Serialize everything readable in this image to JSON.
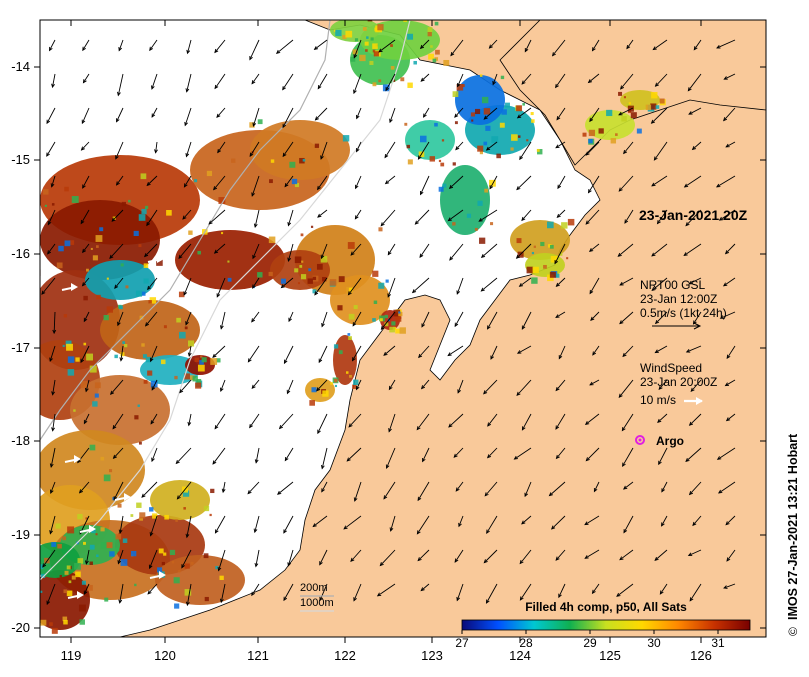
{
  "map": {
    "title": "23-Jan-2021 20Z",
    "x_ticks": [
      "119",
      "120",
      "121",
      "122",
      "123",
      "124",
      "125",
      "126"
    ],
    "y_ticks": [
      "-14",
      "-15",
      "-16",
      "-17",
      "-18",
      "-19",
      "-20"
    ],
    "colors": {
      "land": "#f9c99a",
      "sea_no_data": "#ffffff",
      "coast": "#000000",
      "argo": "#e020e0"
    }
  },
  "legend": {
    "current_title": "NRT00 GSL",
    "current_time": "23-Jan 12:00Z",
    "current_scale": "0.5m/s (1kt 24h)",
    "wind_title": "WindSpeed",
    "wind_time": "23-Jan 20:00Z",
    "wind_scale": "10 m/s",
    "argo_label": "Argo",
    "depth_200": "200m",
    "depth_1000": "1000m"
  },
  "colorbar": {
    "title": "Filled 4h comp, p50, All Sats",
    "min": 27,
    "max": 31.5,
    "tick_labels": [
      "27",
      "28",
      "29",
      "30",
      "31"
    ],
    "tick_values": [
      27,
      28,
      29,
      30,
      31
    ],
    "stops": [
      "#0a0a78",
      "#0050ff",
      "#00c8d2",
      "#10b050",
      "#c8e020",
      "#ffd800",
      "#ff8800",
      "#c83200",
      "#780000"
    ]
  },
  "credit": "IMOS 27-Jan-2021 13:21 Hobart",
  "credit_symbol": "©"
}
